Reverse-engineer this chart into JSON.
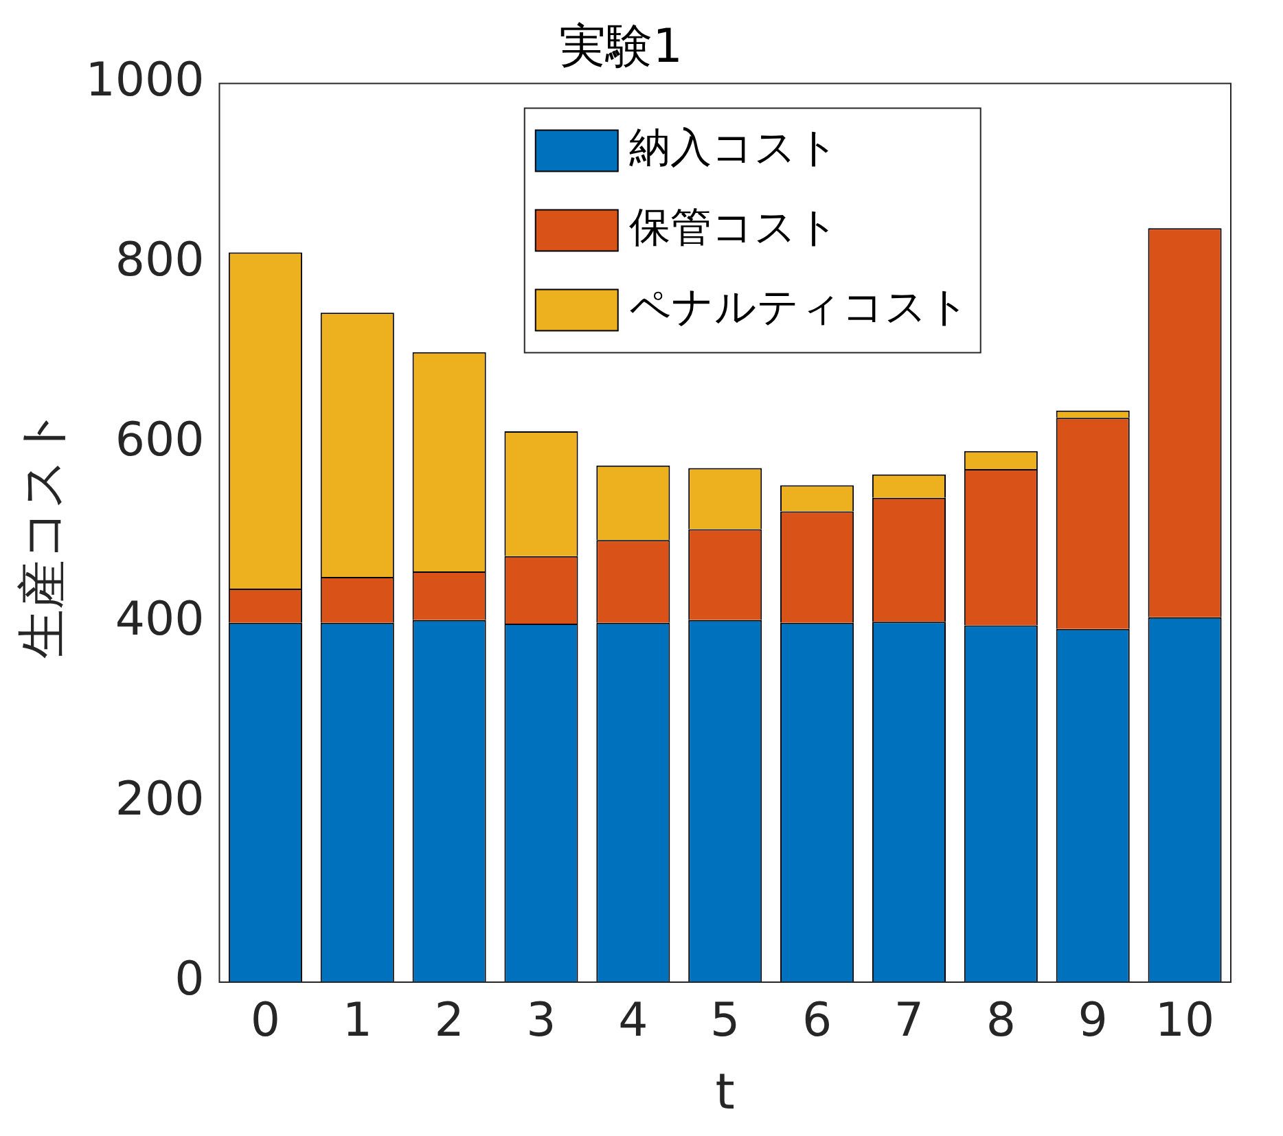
{
  "chart_data": {
    "type": "bar",
    "title": "実験1",
    "xlabel": "t",
    "ylabel": "生産コスト",
    "categories": [
      "0",
      "1",
      "2",
      "3",
      "4",
      "5",
      "6",
      "7",
      "8",
      "9",
      "10"
    ],
    "stacked": true,
    "legend": "top",
    "grid": false,
    "ylim": [
      0,
      1000
    ],
    "yticks": [
      0,
      200,
      400,
      600,
      800,
      1000
    ],
    "series": [
      {
        "name": "納入コスト",
        "color": "#0072bd",
        "values": [
          400,
          400,
          403,
          399,
          400,
          403,
          400,
          401,
          397,
          393,
          406
        ]
      },
      {
        "name": "保管コスト",
        "color": "#d95319",
        "values": [
          38,
          51,
          54,
          75,
          92,
          101,
          124,
          138,
          174,
          235,
          433
        ]
      },
      {
        "name": "ペナルティコスト",
        "color": "#edb120",
        "values": [
          374,
          294,
          244,
          139,
          83,
          68,
          29,
          26,
          20,
          8,
          0
        ]
      }
    ]
  }
}
